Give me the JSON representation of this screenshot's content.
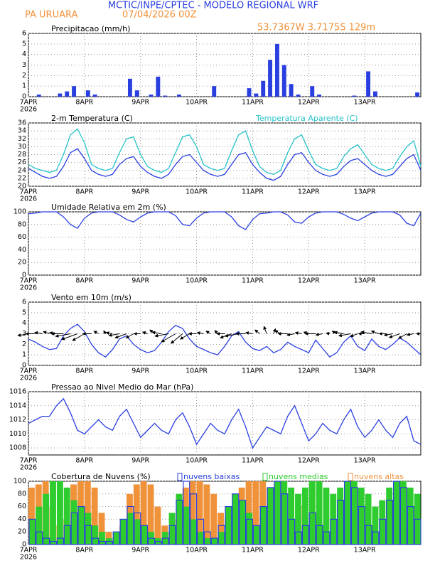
{
  "header": {
    "title": "MCTIC/INPE/CPTEC - MODELO REGIONAL WRF",
    "location": "PA URUARA",
    "run": "07/04/2026 00Z",
    "coords": "53.7367W 3.7175S 129m"
  },
  "chart_data": [
    {
      "type": "bar",
      "title": "Precipitacao (mm/h)",
      "xlim": [
        0,
        168
      ],
      "xticks": [
        {
          "value": 0,
          "label": "7APR"
        },
        {
          "value": 24,
          "label": "8APR"
        },
        {
          "value": 48,
          "label": "9APR"
        },
        {
          "value": 72,
          "label": "10APR"
        },
        {
          "value": 96,
          "label": "11APR"
        },
        {
          "value": 120,
          "label": "12APR"
        },
        {
          "value": 144,
          "label": "13APR"
        }
      ],
      "year_label": "2026",
      "ylim": [
        0,
        6
      ],
      "yticks": [
        0,
        1,
        2,
        3,
        4,
        5,
        6
      ],
      "series": [
        {
          "color": "#2a3fe0",
          "values": [
            0,
            0.2,
            0,
            0,
            0.3,
            0.5,
            1.0,
            0,
            0.6,
            0.2,
            0,
            0,
            0,
            0,
            1.7,
            0.6,
            0,
            0.2,
            1.9,
            0.1,
            0,
            0.2,
            0,
            0,
            0,
            0,
            1.0,
            0,
            0,
            0,
            0,
            0.8,
            0.3,
            1.5,
            3.5,
            5.0,
            3.0,
            1.2,
            0.2,
            0,
            1.0,
            0.2,
            0,
            0,
            0,
            0,
            0.1,
            0,
            2.4,
            0.5,
            0,
            0,
            0,
            0,
            0,
            0.4
          ]
        }
      ]
    },
    {
      "type": "line",
      "xlim": [
        0,
        168
      ],
      "xticks": [
        {
          "value": 0,
          "label": "7APR"
        },
        {
          "value": 24,
          "label": "8APR"
        },
        {
          "value": 48,
          "label": "9APR"
        },
        {
          "value": 72,
          "label": "10APR"
        },
        {
          "value": 96,
          "label": "11APR"
        },
        {
          "value": 120,
          "label": "12APR"
        },
        {
          "value": 144,
          "label": "13APR"
        }
      ],
      "year_label": "2026",
      "ylim": [
        20,
        36
      ],
      "yticks": [
        20,
        22,
        24,
        26,
        28,
        30,
        32,
        34,
        36
      ],
      "series": [
        {
          "name": "2-m Temperatura (C)",
          "color": "#2a3fe0",
          "values": [
            24.5,
            23.5,
            22.5,
            22,
            22.5,
            25,
            28.5,
            29.5,
            27,
            24,
            23,
            22.5,
            23,
            25.5,
            27,
            27.5,
            25,
            23.5,
            22.5,
            22,
            23,
            25.5,
            27.5,
            28,
            26,
            24,
            23,
            22.5,
            23,
            25.5,
            28,
            28.5,
            25.5,
            23.5,
            22,
            21.5,
            22.5,
            25.5,
            28,
            28.5,
            26,
            24,
            23,
            22.5,
            23,
            25,
            26.5,
            27,
            25.5,
            24,
            23,
            22.5,
            23,
            25,
            27,
            28,
            24
          ]
        },
        {
          "name": "Temperatura Aparente (C)",
          "color": "#26c2c8",
          "values": [
            25.5,
            24.5,
            24,
            23.5,
            24,
            28,
            33,
            34.5,
            31,
            25.5,
            24.5,
            24,
            24.5,
            28.5,
            32,
            32.5,
            28,
            25,
            24,
            23.5,
            24.5,
            28.5,
            32.5,
            33,
            30,
            25.5,
            24.5,
            24,
            24.5,
            29,
            33,
            34,
            29,
            25,
            23.5,
            23,
            24,
            28.5,
            32,
            33,
            29,
            25.5,
            24.5,
            24,
            24.5,
            27.5,
            29.5,
            30.5,
            28,
            25.5,
            24.5,
            24,
            24.5,
            27.5,
            30,
            31.5,
            25
          ]
        }
      ]
    },
    {
      "type": "line",
      "title": "Umidade Relativa em 2m (%)",
      "xlim": [
        0,
        168
      ],
      "xticks": [
        {
          "value": 0,
          "label": "7APR"
        },
        {
          "value": 24,
          "label": "8APR"
        },
        {
          "value": 48,
          "label": "9APR"
        },
        {
          "value": 72,
          "label": "10APR"
        },
        {
          "value": 96,
          "label": "11APR"
        },
        {
          "value": 120,
          "label": "12APR"
        },
        {
          "value": 144,
          "label": "13APR"
        }
      ],
      "year_label": "2026",
      "ylim": [
        0,
        100
      ],
      "yticks": [
        0,
        20,
        40,
        60,
        80,
        100
      ],
      "series": [
        {
          "color": "#2a3fe0",
          "values": [
            97,
            98,
            100,
            100,
            100,
            92,
            80,
            74,
            90,
            98,
            100,
            100,
            100,
            95,
            88,
            84,
            92,
            98,
            100,
            100,
            100,
            94,
            80,
            78,
            90,
            98,
            100,
            100,
            100,
            92,
            78,
            72,
            88,
            97,
            98,
            100,
            100,
            95,
            84,
            82,
            92,
            98,
            100,
            100,
            100,
            96,
            90,
            86,
            92,
            98,
            100,
            100,
            100,
            95,
            82,
            78,
            98
          ]
        }
      ]
    },
    {
      "type": "line",
      "title": "Vento em 10m (m/s)",
      "xlim": [
        0,
        168
      ],
      "xticks": [
        {
          "value": 0,
          "label": "7APR"
        },
        {
          "value": 24,
          "label": "8APR"
        },
        {
          "value": 48,
          "label": "9APR"
        },
        {
          "value": 72,
          "label": "10APR"
        },
        {
          "value": 96,
          "label": "11APR"
        },
        {
          "value": 120,
          "label": "12APR"
        },
        {
          "value": 144,
          "label": "13APR"
        }
      ],
      "year_label": "2026",
      "ylim": [
        0,
        6
      ],
      "yticks": [
        0,
        1,
        2,
        3,
        4,
        5,
        6
      ],
      "series": [
        {
          "color": "#2a3fe0",
          "values": [
            2.5,
            2.2,
            1.8,
            1.5,
            1.6,
            2.8,
            3.5,
            3.9,
            3.2,
            2,
            1.2,
            0.8,
            1.5,
            2.5,
            2.8,
            2,
            1.5,
            1.2,
            1.4,
            2.2,
            3.2,
            3.8,
            3.5,
            2.5,
            1.8,
            1.5,
            1.2,
            1,
            1.8,
            2.8,
            3.2,
            2.2,
            1.6,
            1.4,
            1.8,
            1.2,
            1.5,
            2.2,
            1.8,
            1.5,
            1.2,
            2.4,
            1.6,
            0.8,
            1.2,
            2.2,
            2.8,
            1.8,
            1.4,
            2.5,
            1.8,
            1.5,
            2,
            2.6,
            2.2,
            1.6,
            1
          ],
          "directions": [
            80,
            90,
            100,
            110,
            100,
            90,
            80,
            70,
            60,
            90,
            120,
            150,
            100,
            80,
            70,
            60,
            90,
            110,
            130,
            100,
            80,
            60,
            50,
            60,
            90,
            100,
            120,
            140,
            90,
            70,
            80,
            90,
            100,
            130,
            160,
            200,
            120,
            90,
            80,
            100,
            110,
            90,
            80,
            100,
            120,
            100,
            80,
            70,
            90,
            100,
            110,
            90,
            80,
            70,
            60,
            80,
            90
          ]
        }
      ]
    },
    {
      "type": "line",
      "title": "Pressao ao Nivel Medio do Mar (hPa)",
      "xlim": [
        0,
        168
      ],
      "xticks": [
        {
          "value": 0,
          "label": "7APR"
        },
        {
          "value": 24,
          "label": "8APR"
        },
        {
          "value": 48,
          "label": "9APR"
        },
        {
          "value": 72,
          "label": "10APR"
        },
        {
          "value": 96,
          "label": "11APR"
        },
        {
          "value": 120,
          "label": "12APR"
        },
        {
          "value": 144,
          "label": "13APR"
        }
      ],
      "year_label": "2026",
      "ylim": [
        1007,
        1016
      ],
      "yticks": [
        1008,
        1010,
        1012,
        1014,
        1016
      ],
      "series": [
        {
          "color": "#2a3fe0",
          "values": [
            1011.5,
            1012,
            1012.5,
            1012.5,
            1014,
            1015,
            1013,
            1010.5,
            1010,
            1011,
            1012,
            1011,
            1010.5,
            1012.5,
            1013.5,
            1011.5,
            1009.5,
            1010.5,
            1011.5,
            1010.5,
            1010,
            1012,
            1013,
            1011,
            1008.5,
            1010,
            1011.5,
            1010.5,
            1010,
            1012,
            1013.5,
            1011,
            1008,
            1009.5,
            1011,
            1010.5,
            1010,
            1012.5,
            1014,
            1011.5,
            1009,
            1010,
            1011.5,
            1010.5,
            1010,
            1012,
            1013.5,
            1011,
            1009.5,
            1010.5,
            1012,
            1010.5,
            1009.5,
            1011.5,
            1012.5,
            1009,
            1008.5
          ]
        }
      ]
    },
    {
      "type": "bar",
      "title": "Cobertura de Nuvens (%)",
      "xlim": [
        0,
        168
      ],
      "xticks": [
        {
          "value": 0,
          "label": "7APR"
        },
        {
          "value": 24,
          "label": "8APR"
        },
        {
          "value": 48,
          "label": "9APR"
        },
        {
          "value": 72,
          "label": "10APR"
        },
        {
          "value": 96,
          "label": "11APR"
        },
        {
          "value": 120,
          "label": "12APR"
        },
        {
          "value": 144,
          "label": "13APR"
        }
      ],
      "year_label": "2026",
      "ylim": [
        0,
        100
      ],
      "yticks": [
        0,
        20,
        40,
        60,
        80,
        100
      ],
      "series": [
        {
          "name": "nuvens baixas",
          "color": "#2a3fe0",
          "outline": true,
          "values": [
            40,
            20,
            10,
            5,
            10,
            30,
            50,
            60,
            30,
            10,
            5,
            5,
            20,
            40,
            60,
            50,
            30,
            10,
            5,
            10,
            30,
            70,
            100,
            80,
            40,
            20,
            10,
            30,
            60,
            80,
            70,
            40,
            30,
            60,
            90,
            100,
            80,
            40,
            20,
            30,
            50,
            30,
            20,
            40,
            70,
            100,
            90,
            60,
            30,
            20,
            40,
            70,
            100,
            90,
            60,
            40
          ]
        },
        {
          "name": "nuvens medias",
          "color": "#2ecc2e",
          "values": [
            40,
            60,
            80,
            100,
            100,
            90,
            70,
            60,
            50,
            30,
            20,
            10,
            20,
            40,
            50,
            40,
            30,
            20,
            10,
            20,
            50,
            80,
            60,
            40,
            20,
            10,
            10,
            20,
            60,
            80,
            70,
            50,
            30,
            60,
            90,
            100,
            100,
            90,
            80,
            90,
            100,
            100,
            90,
            80,
            90,
            100,
            100,
            90,
            80,
            60,
            70,
            90,
            100,
            100,
            90,
            80
          ]
        },
        {
          "name": "nuvens altas",
          "color": "#f0923a",
          "values": [
            90,
            95,
            100,
            60,
            30,
            40,
            95,
            100,
            100,
            90,
            50,
            20,
            10,
            30,
            80,
            95,
            100,
            95,
            60,
            30,
            20,
            40,
            90,
            100,
            100,
            95,
            80,
            50,
            40,
            60,
            90,
            100,
            100,
            100,
            90,
            60,
            30,
            20,
            40,
            60,
            30,
            10,
            0,
            0,
            10,
            20,
            30,
            20,
            10,
            0,
            0,
            0,
            10,
            20,
            30,
            10
          ]
        }
      ]
    }
  ]
}
